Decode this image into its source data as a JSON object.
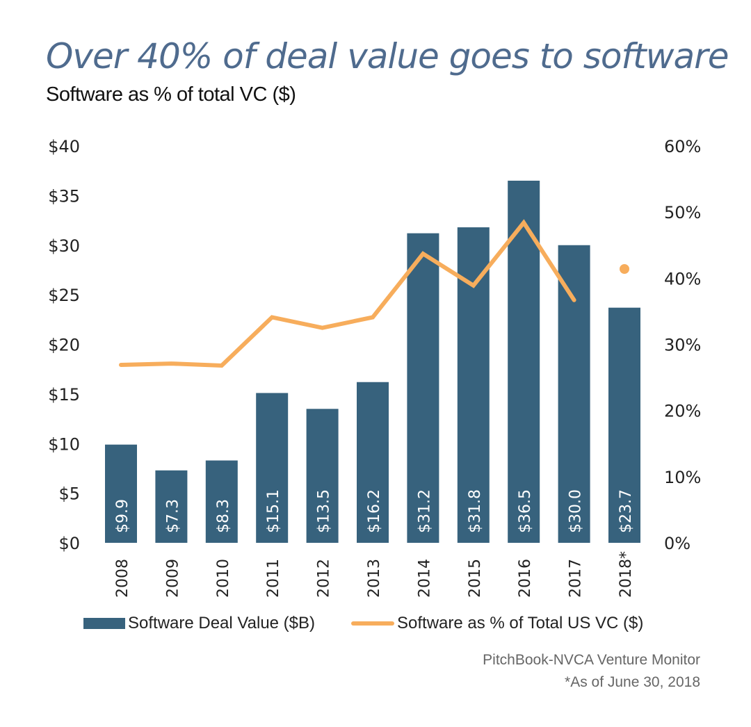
{
  "header": {
    "title": "Over 40% of deal value goes to software",
    "subtitle": "Software as % of total VC ($)"
  },
  "colors": {
    "bar": "#37627d",
    "line": "#f7ad5c",
    "title": "#4f6b8e",
    "axis_text": "#222222",
    "bar_label": "#ffffff"
  },
  "chart_data": {
    "type": "bar",
    "title": "Over 40% of deal value goes to software",
    "subtitle": "Software as % of total VC ($)",
    "categories": [
      "2008",
      "2009",
      "2010",
      "2011",
      "2012",
      "2013",
      "2014",
      "2015",
      "2016",
      "2017",
      "2018*"
    ],
    "series": [
      {
        "name": "Software Deal Value ($B)",
        "type": "bar",
        "axis": "left",
        "values": [
          9.9,
          7.3,
          8.3,
          15.1,
          13.5,
          16.2,
          31.2,
          31.8,
          36.5,
          30.0,
          23.7
        ],
        "labels": [
          "$9.9",
          "$7.3",
          "$8.3",
          "$15.1",
          "$13.5",
          "$16.2",
          "$31.2",
          "$31.8",
          "$36.5",
          "$30.0",
          "$23.7"
        ]
      },
      {
        "name": "Software as % of Total US VC ($)",
        "type": "line",
        "axis": "right",
        "values": [
          26.9,
          27.1,
          26.8,
          34.1,
          32.5,
          34.1,
          43.7,
          38.9,
          48.4,
          36.7,
          41.4
        ],
        "note": "2018* value shown as a separate point, not connected to line"
      }
    ],
    "y_left": {
      "ylim": [
        0,
        40
      ],
      "ticks": [
        0,
        5,
        10,
        15,
        20,
        25,
        30,
        35,
        40
      ],
      "tick_labels": [
        "$0",
        "$5",
        "$10",
        "$15",
        "$20",
        "$25",
        "$30",
        "$35",
        "$40"
      ]
    },
    "y_right": {
      "ylim": [
        0,
        60
      ],
      "ticks": [
        0,
        10,
        20,
        30,
        40,
        50,
        60
      ],
      "tick_labels": [
        "0%",
        "10%",
        "20%",
        "30%",
        "40%",
        "50%",
        "60%"
      ]
    },
    "xlabel": "",
    "ylabel": "",
    "grid": false,
    "legend": "bottom"
  },
  "legend": {
    "bar_label": "Software Deal Value ($B)",
    "line_label": "Software as % of Total US VC ($)"
  },
  "footer": {
    "source": "PitchBook-NVCA Venture Monitor",
    "note": "*As of June 30, 2018"
  }
}
